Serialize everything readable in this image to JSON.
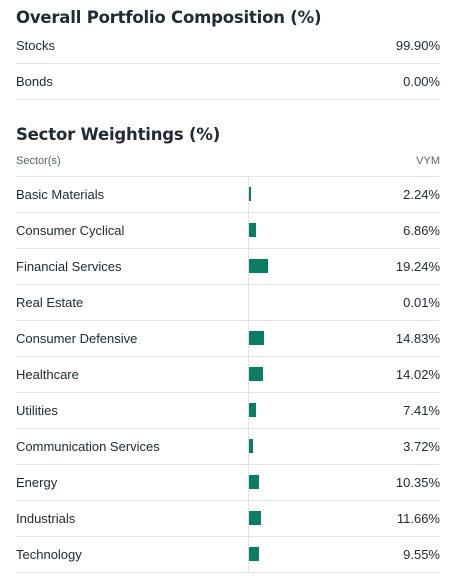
{
  "portfolio_composition": {
    "title": "Overall Portfolio Composition (%)",
    "rows": [
      {
        "label": "Stocks",
        "value": "99.90%"
      },
      {
        "label": "Bonds",
        "value": "0.00%"
      }
    ]
  },
  "sector_weightings": {
    "title": "Sector Weightings (%)",
    "column_left": "Sector(s)",
    "column_right": "VYM",
    "bar_color": "#0a7e64",
    "rows": [
      {
        "label": "Basic Materials",
        "value": "2.24%",
        "pct": 2.24
      },
      {
        "label": "Consumer Cyclical",
        "value": "6.86%",
        "pct": 6.86
      },
      {
        "label": "Financial Services",
        "value": "19.24%",
        "pct": 19.24
      },
      {
        "label": "Real Estate",
        "value": "0.01%",
        "pct": 0.01
      },
      {
        "label": "Consumer Defensive",
        "value": "14.83%",
        "pct": 14.83
      },
      {
        "label": "Healthcare",
        "value": "14.02%",
        "pct": 14.02
      },
      {
        "label": "Utilities",
        "value": "7.41%",
        "pct": 7.41
      },
      {
        "label": "Communication Services",
        "value": "3.72%",
        "pct": 3.72
      },
      {
        "label": "Energy",
        "value": "10.35%",
        "pct": 10.35
      },
      {
        "label": "Industrials",
        "value": "11.66%",
        "pct": 11.66
      },
      {
        "label": "Technology",
        "value": "9.55%",
        "pct": 9.55
      }
    ]
  }
}
